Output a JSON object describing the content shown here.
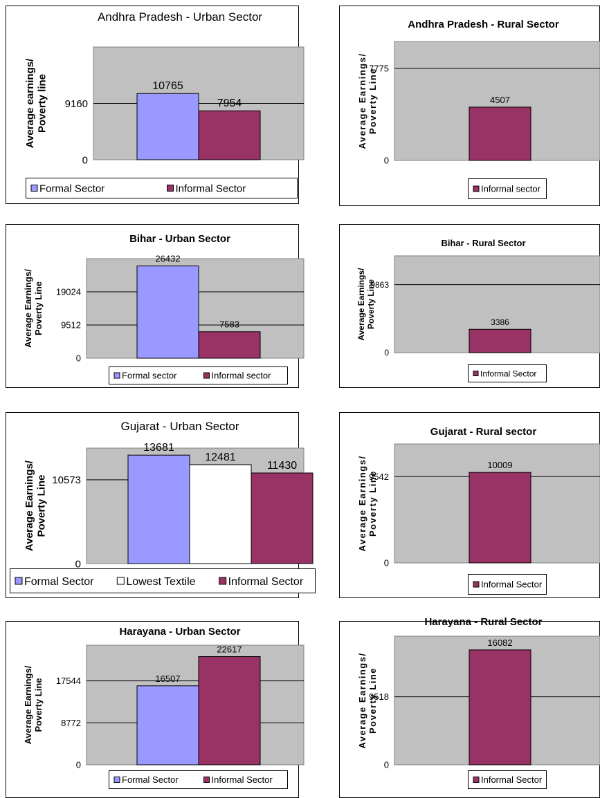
{
  "colors": {
    "formal": "#9999ff",
    "informal": "#993366",
    "lowest": "#ffffff",
    "plot_bg": "#c0c0c0",
    "border": "#000000"
  },
  "chart_data": [
    {
      "type": "bar",
      "title": "Andhra Pradesh - Urban Sector",
      "ylabel": "Average earnings/ Poverty line",
      "yticks": [
        0,
        9160
      ],
      "ylim": [
        0,
        18320
      ],
      "grid": true,
      "legend_position": "bottom",
      "series": [
        {
          "name": "Formal Sector",
          "color": "#9999ff",
          "values": [
            10765
          ],
          "labels": [
            "10765"
          ]
        },
        {
          "name": "Informal Sector",
          "color": "#993366",
          "values": [
            7954
          ],
          "labels": [
            "7954"
          ]
        }
      ]
    },
    {
      "type": "bar",
      "title": "Andhra Pradesh - Rural Sector",
      "ylabel": "Average Earnings/ Poverty Line",
      "yticks": [
        0,
        7775
      ],
      "ylim": [
        0,
        10050
      ],
      "grid": true,
      "legend_position": "bottom",
      "series": [
        {
          "name": "Informal sector",
          "color": "#993366",
          "values": [
            4507
          ],
          "labels": [
            "4507"
          ]
        }
      ]
    },
    {
      "type": "bar",
      "title": "Bihar - Urban Sector",
      "ylabel": "Average Earnings/ Poverty Line",
      "yticks": [
        0,
        9512,
        19024
      ],
      "ylim": [
        0,
        28536
      ],
      "grid": true,
      "legend_position": "bottom",
      "series": [
        {
          "name": "Formal sector",
          "color": "#9999ff",
          "values": [
            26432
          ],
          "labels": [
            "26432"
          ]
        },
        {
          "name": "Informal sector",
          "color": "#993366",
          "values": [
            7583
          ],
          "labels": [
            "7583"
          ]
        }
      ]
    },
    {
      "type": "bar",
      "title": "Bihar - Rural Sector",
      "ylabel": "Average Earnings/ Poverty Line",
      "yticks": [
        0,
        9863
      ],
      "ylim": [
        0,
        14040
      ],
      "grid": true,
      "legend_position": "bottom",
      "series": [
        {
          "name": "Informal Sector",
          "color": "#993366",
          "values": [
            3386
          ],
          "labels": [
            "3386"
          ]
        }
      ]
    },
    {
      "type": "bar",
      "title": "Gujarat - Urban Sector",
      "ylabel": "Average Earnings/ Poverty Line",
      "yticks": [
        0,
        10573
      ],
      "ylim": [
        0,
        14570
      ],
      "grid": true,
      "legend_position": "bottom",
      "series": [
        {
          "name": "Formal Sector",
          "color": "#9999ff",
          "values": [
            13681
          ],
          "labels": [
            "13681"
          ]
        },
        {
          "name": "Lowest Textile",
          "color": "#ffffff",
          "values": [
            12481
          ],
          "labels": [
            "12481"
          ]
        },
        {
          "name": "Informal Sector",
          "color": "#993366",
          "values": [
            11430
          ],
          "labels": [
            "11430"
          ]
        }
      ]
    },
    {
      "type": "bar",
      "title": "Gujarat - Rural sector",
      "ylabel": "Average Earnings/ Poverty Line",
      "yticks": [
        0,
        9542
      ],
      "ylim": [
        0,
        13160
      ],
      "grid": true,
      "legend_position": "bottom",
      "series": [
        {
          "name": "Informal Sector",
          "color": "#993366",
          "values": [
            10009
          ],
          "labels": [
            "10009"
          ]
        }
      ]
    },
    {
      "type": "bar",
      "title": "Harayana - Urban Sector",
      "ylabel": "Average Earnings/ Poverty Line",
      "yticks": [
        0,
        8772,
        17544
      ],
      "ylim": [
        0,
        25000
      ],
      "grid": true,
      "legend_position": "bottom",
      "series": [
        {
          "name": "Formal Sector",
          "color": "#9999ff",
          "values": [
            16507
          ],
          "labels": [
            "16507"
          ]
        },
        {
          "name": "Informal Sector",
          "color": "#993366",
          "values": [
            22617
          ],
          "labels": [
            "22617"
          ]
        }
      ]
    },
    {
      "type": "bar",
      "title": "Harayana - Rural Sector",
      "ylabel": "Average Earnings/ Poverty Line",
      "yticks": [
        0,
        9518
      ],
      "ylim": [
        0,
        18000
      ],
      "grid": true,
      "legend_position": "bottom",
      "series": [
        {
          "name": "Informal Sector",
          "color": "#993366",
          "values": [
            16082
          ],
          "labels": [
            "16082"
          ]
        }
      ]
    }
  ]
}
